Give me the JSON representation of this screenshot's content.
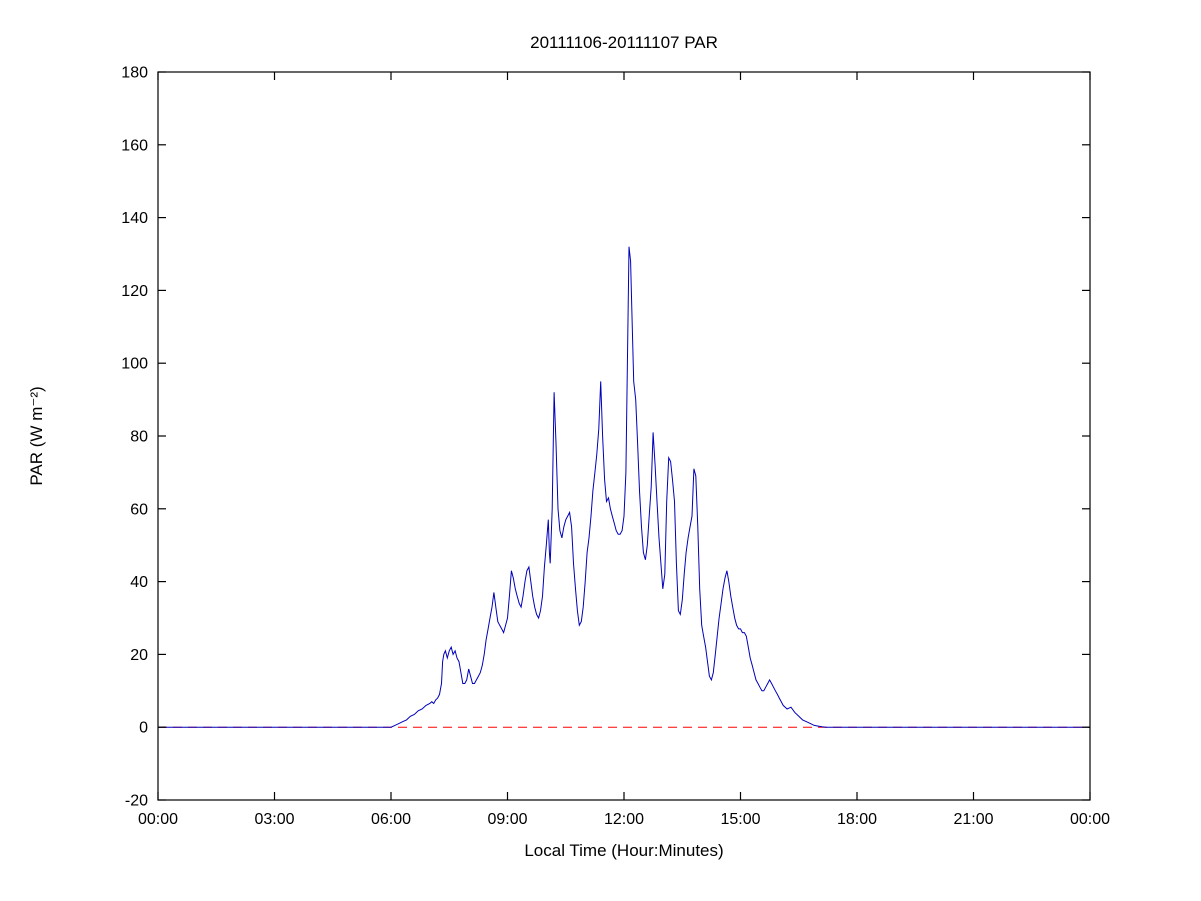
{
  "chart_data": {
    "type": "line",
    "title": "20111106-20111107 PAR",
    "xlabel": "Local Time (Hour:Minutes)",
    "ylabel": "PAR (W m⁻²)",
    "xlim": [
      0,
      24
    ],
    "ylim": [
      -20,
      180
    ],
    "grid": false,
    "legend": "none",
    "x_ticks": [
      0,
      3,
      6,
      9,
      12,
      15,
      18,
      21,
      24
    ],
    "x_tick_labels": [
      "00:00",
      "03:00",
      "06:00",
      "09:00",
      "12:00",
      "15:00",
      "18:00",
      "21:00",
      "00:00"
    ],
    "y_ticks": [
      -20,
      0,
      20,
      40,
      60,
      80,
      100,
      120,
      140,
      160,
      180
    ],
    "axis_color": "#000000",
    "series": [
      {
        "name": "zero-reference",
        "color": "#ff0000",
        "style": "dashed",
        "points": [
          [
            0,
            0
          ],
          [
            24,
            0
          ]
        ]
      },
      {
        "name": "PAR",
        "color": "#0000bb",
        "style": "solid",
        "points": [
          [
            0,
            0
          ],
          [
            1,
            0
          ],
          [
            2,
            0
          ],
          [
            3,
            0
          ],
          [
            4,
            0
          ],
          [
            5,
            0
          ],
          [
            5.5,
            0
          ],
          [
            6.0,
            0
          ],
          [
            6.1,
            0.5
          ],
          [
            6.2,
            1
          ],
          [
            6.3,
            1.5
          ],
          [
            6.4,
            2
          ],
          [
            6.5,
            3
          ],
          [
            6.6,
            3.5
          ],
          [
            6.7,
            4.5
          ],
          [
            6.8,
            5
          ],
          [
            6.9,
            6
          ],
          [
            7.0,
            6.5
          ],
          [
            7.05,
            7
          ],
          [
            7.1,
            6.5
          ],
          [
            7.15,
            7.5
          ],
          [
            7.2,
            8
          ],
          [
            7.25,
            9
          ],
          [
            7.3,
            12
          ],
          [
            7.33,
            18
          ],
          [
            7.36,
            20
          ],
          [
            7.4,
            21
          ],
          [
            7.45,
            19
          ],
          [
            7.5,
            21
          ],
          [
            7.55,
            22
          ],
          [
            7.6,
            20
          ],
          [
            7.65,
            21
          ],
          [
            7.7,
            19
          ],
          [
            7.75,
            18
          ],
          [
            7.8,
            15
          ],
          [
            7.85,
            12
          ],
          [
            7.9,
            12
          ],
          [
            7.95,
            13
          ],
          [
            8.0,
            16
          ],
          [
            8.05,
            14
          ],
          [
            8.1,
            12
          ],
          [
            8.15,
            12
          ],
          [
            8.2,
            13
          ],
          [
            8.25,
            14
          ],
          [
            8.3,
            15
          ],
          [
            8.35,
            17
          ],
          [
            8.4,
            20
          ],
          [
            8.45,
            24
          ],
          [
            8.5,
            27
          ],
          [
            8.55,
            30
          ],
          [
            8.6,
            33
          ],
          [
            8.65,
            37
          ],
          [
            8.7,
            33
          ],
          [
            8.75,
            29
          ],
          [
            8.8,
            28
          ],
          [
            8.85,
            27
          ],
          [
            8.9,
            26
          ],
          [
            8.95,
            28
          ],
          [
            9.0,
            30
          ],
          [
            9.05,
            36
          ],
          [
            9.1,
            43
          ],
          [
            9.15,
            41
          ],
          [
            9.2,
            38
          ],
          [
            9.25,
            36
          ],
          [
            9.3,
            34
          ],
          [
            9.35,
            33
          ],
          [
            9.4,
            36
          ],
          [
            9.45,
            40
          ],
          [
            9.5,
            43
          ],
          [
            9.55,
            44
          ],
          [
            9.6,
            40
          ],
          [
            9.65,
            36
          ],
          [
            9.7,
            33
          ],
          [
            9.75,
            31
          ],
          [
            9.8,
            30
          ],
          [
            9.85,
            32
          ],
          [
            9.9,
            36
          ],
          [
            9.95,
            44
          ],
          [
            10.0,
            50
          ],
          [
            10.05,
            57
          ],
          [
            10.08,
            48
          ],
          [
            10.1,
            45
          ],
          [
            10.15,
            60
          ],
          [
            10.2,
            92
          ],
          [
            10.25,
            78
          ],
          [
            10.3,
            60
          ],
          [
            10.35,
            54
          ],
          [
            10.4,
            52
          ],
          [
            10.45,
            55
          ],
          [
            10.5,
            57
          ],
          [
            10.55,
            58
          ],
          [
            10.6,
            59
          ],
          [
            10.65,
            55
          ],
          [
            10.7,
            45
          ],
          [
            10.75,
            38
          ],
          [
            10.8,
            32
          ],
          [
            10.85,
            28
          ],
          [
            10.9,
            29
          ],
          [
            10.95,
            33
          ],
          [
            11.0,
            40
          ],
          [
            11.05,
            48
          ],
          [
            11.1,
            52
          ],
          [
            11.15,
            58
          ],
          [
            11.2,
            65
          ],
          [
            11.25,
            70
          ],
          [
            11.3,
            75
          ],
          [
            11.35,
            82
          ],
          [
            11.4,
            95
          ],
          [
            11.45,
            80
          ],
          [
            11.5,
            68
          ],
          [
            11.55,
            62
          ],
          [
            11.6,
            63
          ],
          [
            11.65,
            60
          ],
          [
            11.7,
            58
          ],
          [
            11.75,
            56
          ],
          [
            11.8,
            54
          ],
          [
            11.85,
            53
          ],
          [
            11.9,
            53
          ],
          [
            11.95,
            54
          ],
          [
            12.0,
            58
          ],
          [
            12.05,
            70
          ],
          [
            12.1,
            110
          ],
          [
            12.13,
            132
          ],
          [
            12.17,
            128
          ],
          [
            12.2,
            115
          ],
          [
            12.25,
            95
          ],
          [
            12.3,
            90
          ],
          [
            12.35,
            78
          ],
          [
            12.4,
            65
          ],
          [
            12.45,
            55
          ],
          [
            12.5,
            48
          ],
          [
            12.55,
            46
          ],
          [
            12.6,
            50
          ],
          [
            12.65,
            58
          ],
          [
            12.7,
            66
          ],
          [
            12.75,
            81
          ],
          [
            12.8,
            72
          ],
          [
            12.85,
            62
          ],
          [
            12.9,
            52
          ],
          [
            12.95,
            45
          ],
          [
            13.0,
            38
          ],
          [
            13.05,
            42
          ],
          [
            13.1,
            62
          ],
          [
            13.15,
            74
          ],
          [
            13.2,
            73
          ],
          [
            13.25,
            68
          ],
          [
            13.3,
            62
          ],
          [
            13.35,
            45
          ],
          [
            13.4,
            32
          ],
          [
            13.45,
            31
          ],
          [
            13.5,
            35
          ],
          [
            13.55,
            42
          ],
          [
            13.6,
            48
          ],
          [
            13.65,
            52
          ],
          [
            13.7,
            55
          ],
          [
            13.75,
            58
          ],
          [
            13.8,
            71
          ],
          [
            13.85,
            69
          ],
          [
            13.9,
            55
          ],
          [
            13.95,
            38
          ],
          [
            14.0,
            28
          ],
          [
            14.05,
            25
          ],
          [
            14.1,
            22
          ],
          [
            14.15,
            18
          ],
          [
            14.2,
            14
          ],
          [
            14.25,
            13
          ],
          [
            14.3,
            15
          ],
          [
            14.35,
            20
          ],
          [
            14.4,
            25
          ],
          [
            14.45,
            30
          ],
          [
            14.5,
            34
          ],
          [
            14.55,
            38
          ],
          [
            14.6,
            41
          ],
          [
            14.65,
            43
          ],
          [
            14.7,
            40
          ],
          [
            14.75,
            36
          ],
          [
            14.8,
            33
          ],
          [
            14.85,
            30
          ],
          [
            14.9,
            28
          ],
          [
            14.95,
            27
          ],
          [
            15.0,
            27
          ],
          [
            15.05,
            26
          ],
          [
            15.1,
            26
          ],
          [
            15.15,
            25
          ],
          [
            15.2,
            22
          ],
          [
            15.25,
            19
          ],
          [
            15.3,
            17
          ],
          [
            15.35,
            15
          ],
          [
            15.4,
            13
          ],
          [
            15.45,
            12
          ],
          [
            15.5,
            11
          ],
          [
            15.55,
            10
          ],
          [
            15.6,
            10
          ],
          [
            15.65,
            11
          ],
          [
            15.7,
            12
          ],
          [
            15.75,
            13
          ],
          [
            15.8,
            12
          ],
          [
            15.85,
            11
          ],
          [
            15.9,
            10
          ],
          [
            15.95,
            9
          ],
          [
            16.0,
            8
          ],
          [
            16.1,
            6
          ],
          [
            16.2,
            5
          ],
          [
            16.3,
            5.5
          ],
          [
            16.4,
            4
          ],
          [
            16.5,
            3
          ],
          [
            16.6,
            2
          ],
          [
            16.7,
            1.5
          ],
          [
            16.8,
            1
          ],
          [
            16.9,
            0.5
          ],
          [
            17.0,
            0.3
          ],
          [
            17.1,
            0.1
          ],
          [
            17.2,
            0
          ],
          [
            18,
            0
          ],
          [
            19,
            0
          ],
          [
            20,
            0
          ],
          [
            21,
            0
          ],
          [
            22,
            0
          ],
          [
            23,
            0
          ],
          [
            24,
            0
          ]
        ]
      }
    ]
  }
}
